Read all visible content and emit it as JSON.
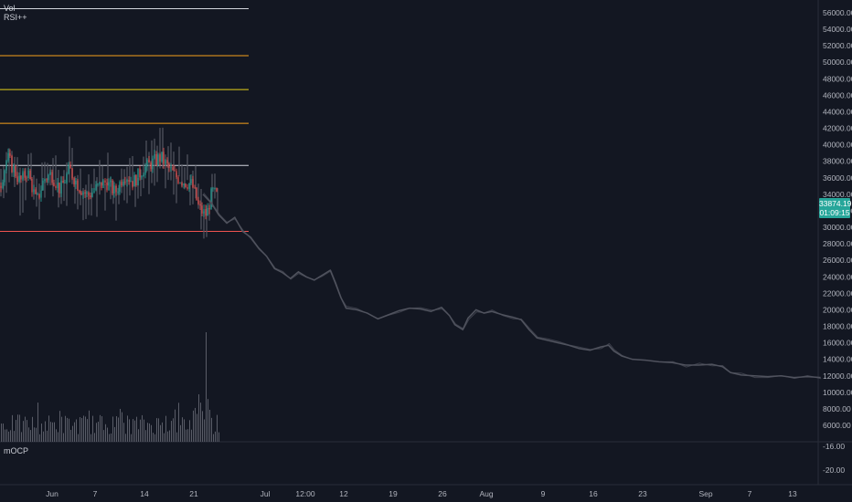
{
  "indicators": {
    "vol_label": "Vol",
    "rsi_label": "RSI++",
    "mocp_label": "mOCP"
  },
  "last_price": {
    "value": "33874.19",
    "countdown": "01:09:15",
    "color": "#26a69a"
  },
  "chart_data": {
    "type": "candlestick",
    "title": "",
    "price_axis": {
      "ticks": [
        56000,
        54000,
        52000,
        50000,
        48000,
        46000,
        44000,
        42000,
        40000,
        38000,
        36000,
        34000,
        32000,
        30000,
        28000,
        26000,
        24000,
        22000,
        20000,
        18000,
        16000,
        14000,
        12000,
        10000,
        8000,
        6000
      ],
      "tick_labels": [
        "56000.00",
        "54000.00",
        "52000.00",
        "50000.00",
        "48000.00",
        "46000.00",
        "44000.00",
        "42000.00",
        "40000.00",
        "38000.00",
        "36000.00",
        "34000.00",
        "32000.00",
        "30000.00",
        "28000.00",
        "26000.00",
        "24000.00",
        "22000.00",
        "20000.00",
        "18000.00",
        "16000.00",
        "14000.00",
        "12000.00",
        "10000.00",
        "8000.00",
        "6000.00"
      ],
      "ylim": [
        5000,
        57500
      ]
    },
    "mocp_axis": {
      "ticks": [
        -16,
        -20
      ],
      "tick_labels": [
        "-16.00",
        "-20.00"
      ]
    },
    "time_axis": {
      "labels": [
        "Jun",
        "7",
        "14",
        "21",
        "Jul",
        "12:00",
        "12",
        "19",
        "26",
        "Aug",
        "9",
        "16",
        "23",
        "Sep",
        "7",
        "13"
      ]
    },
    "horizontal_levels": [
      {
        "value": 56500,
        "color": "#d1d4dc"
      },
      {
        "value": 50800,
        "color": "#f7a21b"
      },
      {
        "value": 46700,
        "color": "#e6d11a"
      },
      {
        "value": 42600,
        "color": "#f7a21b"
      },
      {
        "value": 37500,
        "color": "#d1d4dc"
      },
      {
        "value": 29500,
        "color": "#ef5350"
      }
    ],
    "projection_path": [
      [
        0,
        34000
      ],
      [
        6,
        33000
      ],
      [
        12,
        31500
      ],
      [
        18,
        30500
      ],
      [
        24,
        31200
      ],
      [
        30,
        29500
      ],
      [
        36,
        28800
      ],
      [
        42,
        27500
      ],
      [
        48,
        26500
      ],
      [
        54,
        25000
      ],
      [
        60,
        24500
      ],
      [
        66,
        23800
      ],
      [
        72,
        24600
      ],
      [
        78,
        24000
      ],
      [
        84,
        23600
      ],
      [
        90,
        24200
      ],
      [
        96,
        24800
      ],
      [
        100,
        23200
      ],
      [
        104,
        21500
      ],
      [
        108,
        20200
      ],
      [
        116,
        20000
      ],
      [
        124,
        19600
      ],
      [
        132,
        18900
      ],
      [
        140,
        19400
      ],
      [
        148,
        19900
      ],
      [
        156,
        20200
      ],
      [
        164,
        20100
      ],
      [
        172,
        19800
      ],
      [
        180,
        20300
      ],
      [
        186,
        19300
      ],
      [
        190,
        18200
      ],
      [
        196,
        17600
      ],
      [
        200,
        19000
      ],
      [
        206,
        20000
      ],
      [
        212,
        19600
      ],
      [
        218,
        19800
      ],
      [
        226,
        19400
      ],
      [
        234,
        19100
      ],
      [
        240,
        18800
      ],
      [
        246,
        17600
      ],
      [
        252,
        16600
      ],
      [
        260,
        16300
      ],
      [
        268,
        16000
      ],
      [
        276,
        15700
      ],
      [
        284,
        15300
      ],
      [
        292,
        15100
      ],
      [
        300,
        15500
      ],
      [
        306,
        15700
      ],
      [
        310,
        15000
      ],
      [
        316,
        14400
      ],
      [
        324,
        14000
      ],
      [
        334,
        13900
      ],
      [
        344,
        13700
      ],
      [
        354,
        13600
      ],
      [
        364,
        13300
      ],
      [
        374,
        13300
      ],
      [
        384,
        13400
      ],
      [
        392,
        13100
      ],
      [
        398,
        12400
      ],
      [
        406,
        12100
      ],
      [
        416,
        12000
      ],
      [
        426,
        11900
      ],
      [
        436,
        12000
      ],
      [
        446,
        11800
      ],
      [
        456,
        11900
      ],
      [
        466,
        11800
      ]
    ],
    "up_color": "#26a69a",
    "down_color": "#ef5350",
    "ghost_color": "#50535e"
  }
}
